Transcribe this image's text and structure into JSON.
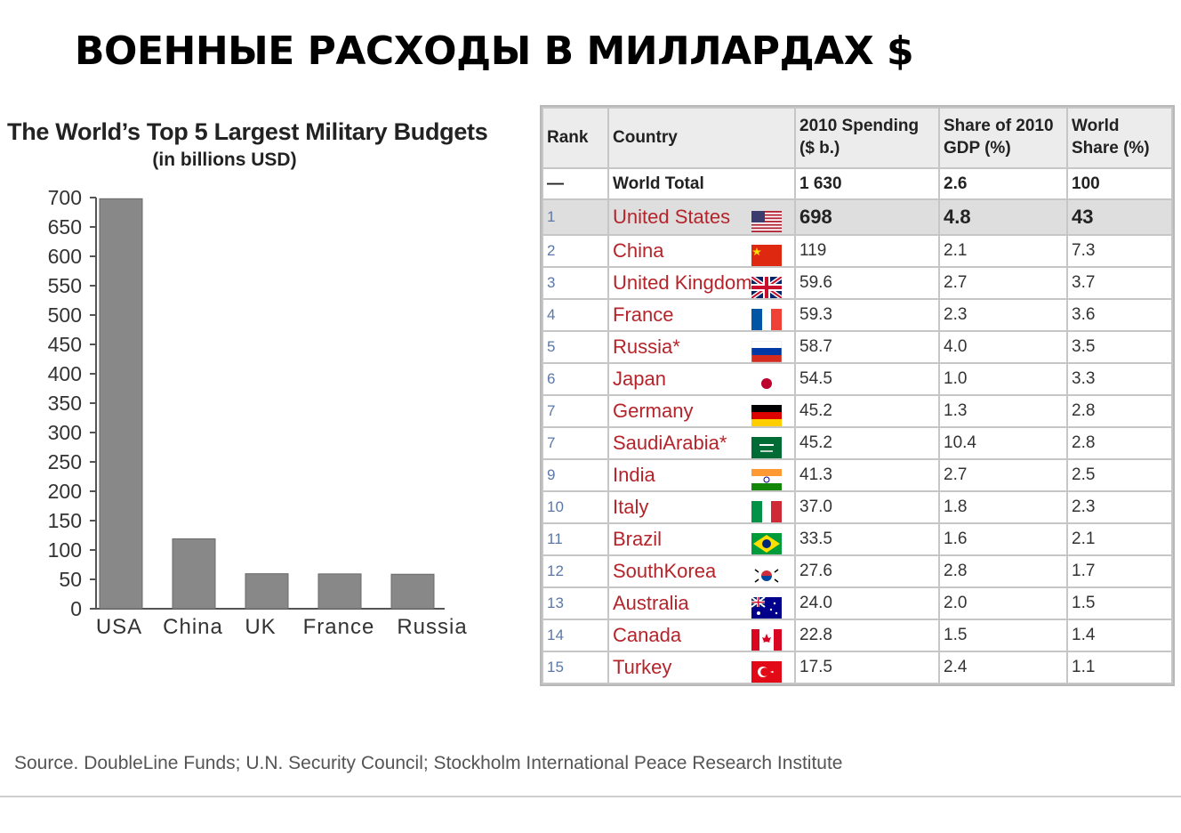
{
  "headline": "ВОЕННЫЕ РАСХОДЫ В МИЛЛАРДАХ $",
  "chart_data": {
    "type": "bar",
    "title": "The World’s Top 5 Largest Military Budgets",
    "subtitle": "(in billions USD)",
    "categories": [
      "USA",
      "China",
      "UK",
      "France",
      "Russia"
    ],
    "values": [
      698,
      119,
      59.6,
      59.3,
      58.7
    ],
    "ylim": [
      0,
      700
    ],
    "yticks": [
      0,
      50,
      100,
      150,
      200,
      250,
      300,
      350,
      400,
      450,
      500,
      550,
      600,
      650,
      700
    ],
    "bar_color": "#888888",
    "grid": false
  },
  "table": {
    "headers": [
      "Rank",
      "Country",
      "2010 Spending\n($ b.)",
      "Share of 2010\nGDP (%)",
      "World\nShare (%)"
    ],
    "world": {
      "rank": "—",
      "country": "World Total",
      "spending": "1 630",
      "gdp": "2.6",
      "share": "100"
    },
    "rows": [
      {
        "rank": "1",
        "country": "United States",
        "spending": "698",
        "gdp": "4.8",
        "share": "43",
        "flag": "us-flag-icon"
      },
      {
        "rank": "2",
        "country": "China",
        "spending": "119",
        "gdp": "2.1",
        "share": "7.3",
        "flag": "china-flag-icon"
      },
      {
        "rank": "3",
        "country": "United Kingdom",
        "spending": "59.6",
        "gdp": "2.7",
        "share": "3.7",
        "flag": "uk-flag-icon"
      },
      {
        "rank": "4",
        "country": "France",
        "spending": "59.3",
        "gdp": "2.3",
        "share": "3.6",
        "flag": "france-flag-icon"
      },
      {
        "rank": "5",
        "country": "Russia*",
        "spending": "58.7",
        "gdp": "4.0",
        "share": "3.5",
        "flag": "russia-flag-icon"
      },
      {
        "rank": "6",
        "country": "Japan",
        "spending": "54.5",
        "gdp": "1.0",
        "share": "3.3",
        "flag": "japan-flag-icon"
      },
      {
        "rank": "7",
        "country": "Germany",
        "spending": "45.2",
        "gdp": "1.3",
        "share": "2.8",
        "flag": "germany-flag-icon"
      },
      {
        "rank": "7",
        "country": "SaudiArabia*",
        "spending": "45.2",
        "gdp": "10.4",
        "share": "2.8",
        "flag": "saudi-arabia-flag-icon"
      },
      {
        "rank": "9",
        "country": "India",
        "spending": "41.3",
        "gdp": "2.7",
        "share": "2.5",
        "flag": "india-flag-icon"
      },
      {
        "rank": "10",
        "country": "Italy",
        "spending": "37.0",
        "gdp": "1.8",
        "share": "2.3",
        "flag": "italy-flag-icon"
      },
      {
        "rank": "11",
        "country": "Brazil",
        "spending": "33.5",
        "gdp": "1.6",
        "share": "2.1",
        "flag": "brazil-flag-icon"
      },
      {
        "rank": "12",
        "country": "SouthKorea",
        "spending": "27.6",
        "gdp": "2.8",
        "share": "1.7",
        "flag": "south-korea-flag-icon"
      },
      {
        "rank": "13",
        "country": "Australia",
        "spending": "24.0",
        "gdp": "2.0",
        "share": "1.5",
        "flag": "australia-flag-icon"
      },
      {
        "rank": "14",
        "country": "Canada",
        "spending": "22.8",
        "gdp": "1.5",
        "share": "1.4",
        "flag": "canada-flag-icon"
      },
      {
        "rank": "15",
        "country": "Turkey",
        "spending": "17.5",
        "gdp": "2.4",
        "share": "1.1",
        "flag": "turkey-flag-icon"
      }
    ]
  },
  "source": "Source. DoubleLine Funds; U.N. Security Council; Stockholm International Peace Research Institute",
  "colors": {
    "country_text": "#b5242a",
    "rank_text": "#5b78a8",
    "top_row_bg": "#dedede",
    "header_bg": "#ececec"
  }
}
